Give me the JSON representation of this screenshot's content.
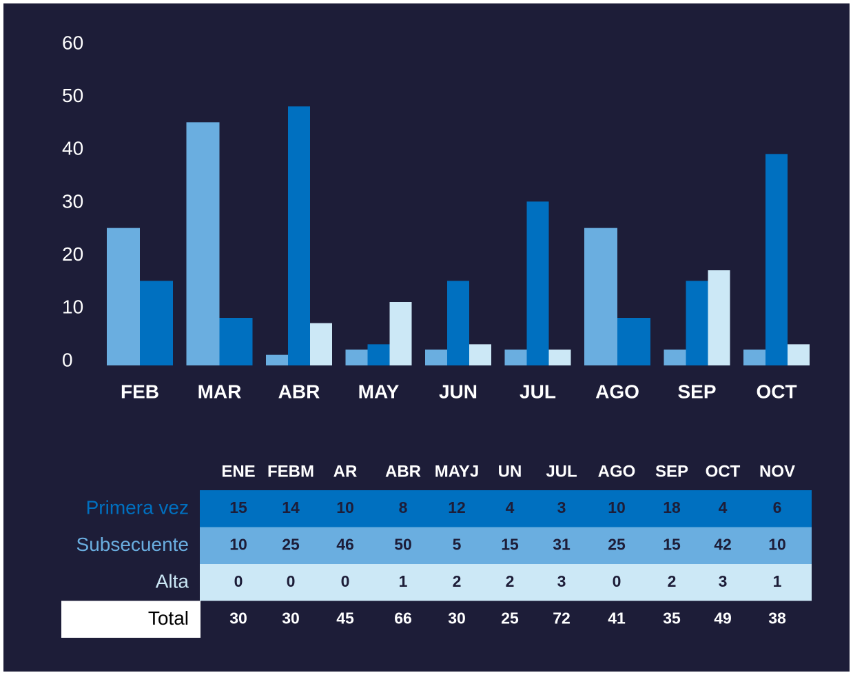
{
  "chart_data": {
    "type": "bar",
    "categories": [
      "FEB",
      "MAR",
      "ABR",
      "MAY",
      "JUN",
      "JUL",
      "AGO",
      "SEP",
      "OCT"
    ],
    "series": [
      {
        "color": "#6aaee0",
        "values": [
          26,
          46,
          2,
          3,
          3,
          3,
          26,
          3,
          3
        ]
      },
      {
        "color": "#0070c0",
        "values": [
          16,
          9,
          49,
          4,
          16,
          31,
          9,
          16,
          40
        ]
      },
      {
        "color": "#cce8f6",
        "values": [
          0,
          0,
          8,
          12,
          4,
          3,
          0,
          18,
          4
        ]
      }
    ],
    "ylim": [
      0,
      60
    ],
    "yticks": [
      0,
      10,
      20,
      30,
      40,
      50,
      60
    ],
    "grid": false
  },
  "table": {
    "header": [
      "ENE",
      "FEBM",
      "AR",
      "ABR",
      "MAYJ",
      "UN",
      "JUL",
      "AGO",
      "SEP",
      "OCT",
      "NOV"
    ],
    "rows": [
      {
        "label": "Primera vez",
        "color": "#0070c0",
        "values": [
          15,
          14,
          10,
          8,
          12,
          4,
          3,
          10,
          18,
          4,
          6
        ]
      },
      {
        "label": "Subsecuente",
        "color": "#6aaee0",
        "values": [
          10,
          25,
          46,
          50,
          5,
          15,
          31,
          25,
          15,
          42,
          10
        ]
      },
      {
        "label": "Alta",
        "color": "#cce8f6",
        "values": [
          0,
          0,
          0,
          1,
          2,
          2,
          3,
          0,
          2,
          3,
          1
        ]
      },
      {
        "label": "Total",
        "values": [
          30,
          30,
          45,
          66,
          30,
          25,
          72,
          41,
          35,
          49,
          38
        ]
      }
    ]
  }
}
